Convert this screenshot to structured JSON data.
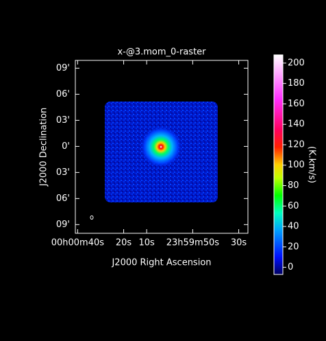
{
  "chart_data": {
    "type": "raster",
    "title": "x-@3.mom_0-raster",
    "xlabel": "J2000 Right Ascension",
    "ylabel": "J2000 Declination",
    "colorbar_label": "(K.km/s)",
    "xlim": [
      41,
      -34
    ],
    "xticks": [
      {
        "value": 40,
        "label": "00h00m40s"
      },
      {
        "value": 20,
        "label": "20s"
      },
      {
        "value": 10,
        "label": "10s"
      },
      {
        "value": -10,
        "label": "23h59m50s"
      },
      {
        "value": -30,
        "label": "30s"
      }
    ],
    "ylim": [
      -10,
      9.9
    ],
    "yticks": [
      {
        "value": 9,
        "label": "09'"
      },
      {
        "value": 6,
        "label": "06'"
      },
      {
        "value": 3,
        "label": "03'"
      },
      {
        "value": 0,
        "label": "0'"
      },
      {
        "value": -3,
        "label": "03'"
      },
      {
        "value": -6,
        "label": "06'"
      },
      {
        "value": -9,
        "label": "09'"
      }
    ],
    "clim": [
      -7,
      208
    ],
    "cticks": [
      0,
      20,
      40,
      60,
      80,
      100,
      120,
      140,
      160,
      180,
      200
    ]
  }
}
